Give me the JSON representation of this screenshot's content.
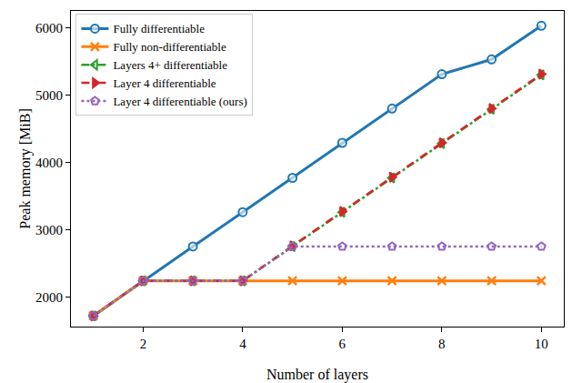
{
  "chart_data": {
    "type": "line",
    "x_label": "Number of layers",
    "y_label": "Peak memory [MiB]",
    "x": [
      1,
      2,
      3,
      4,
      5,
      6,
      7,
      8,
      9,
      10
    ],
    "series": [
      {
        "name": "Fully differentiable",
        "color": "#1f77b4",
        "marker": "circle",
        "line_style": "solid",
        "values": [
          1720,
          2240,
          2750,
          3260,
          3770,
          4290,
          4800,
          5310,
          5530,
          6030
        ]
      },
      {
        "name": "Fully non-differentiable",
        "color": "#ff7f0e",
        "marker": "x",
        "line_style": "solid",
        "values": [
          1720,
          2240,
          2240,
          2240,
          2240,
          2240,
          2240,
          2240,
          2240,
          2240
        ]
      },
      {
        "name": "Layers 4+ differentiable",
        "color": "#2ca02c",
        "marker": "triangle-left",
        "line_style": "dashdot",
        "values": [
          1720,
          2240,
          2240,
          2240,
          2750,
          3260,
          3770,
          4280,
          4790,
          5300
        ]
      },
      {
        "name": "Layer 4 differentiable",
        "color": "#d62728",
        "marker": "triangle-right",
        "line_style": "dashed",
        "values": [
          1720,
          2240,
          2240,
          2240,
          2760,
          3270,
          3780,
          4290,
          4800,
          5310
        ]
      },
      {
        "name": "Layer 4 differentiable (ours)",
        "color": "#9467bd",
        "marker": "pentagon",
        "line_style": "dotted",
        "values": [
          1720,
          2240,
          2240,
          2240,
          2750,
          2750,
          2750,
          2750,
          2750,
          2750
        ]
      }
    ],
    "xlim": [
      0.55,
      10.45
    ],
    "xticks": [
      2,
      4,
      6,
      8,
      10
    ],
    "ylim": [
      1560,
      6250
    ],
    "yticks": [
      2000,
      3000,
      4000,
      5000,
      6000
    ],
    "grid": false,
    "legend": "top-left"
  }
}
